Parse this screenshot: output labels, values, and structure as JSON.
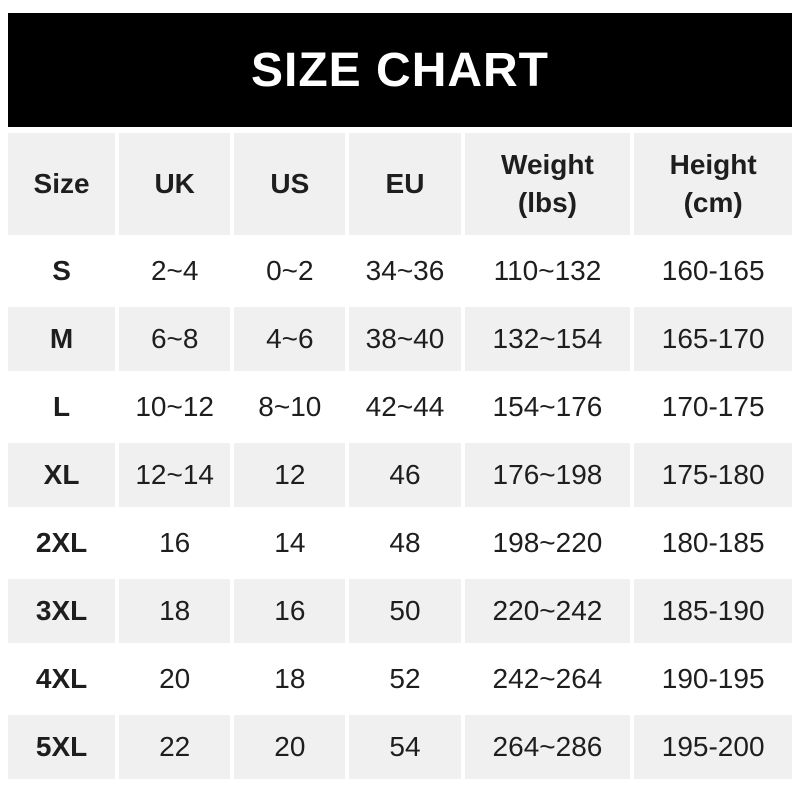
{
  "banner": {
    "title": "SIZE CHART"
  },
  "colors": {
    "banner_bg": "#000000",
    "banner_text": "#ffffff",
    "row_shade": "#f0f0f0",
    "row_plain": "#ffffff",
    "text": "#1e1e1e"
  },
  "table": {
    "headers": [
      {
        "label": "Size",
        "sub": ""
      },
      {
        "label": "UK",
        "sub": ""
      },
      {
        "label": "US",
        "sub": ""
      },
      {
        "label": "EU",
        "sub": ""
      },
      {
        "label": "Weight",
        "sub": "(lbs)"
      },
      {
        "label": "Height",
        "sub": "(cm)"
      }
    ]
  },
  "chart_data": {
    "type": "table",
    "title": "SIZE CHART",
    "columns": [
      "Size",
      "UK",
      "US",
      "EU",
      "Weight (lbs)",
      "Height (cm)"
    ],
    "rows": [
      [
        "S",
        "2~4",
        "0~2",
        "34~36",
        "110~132",
        "160-165"
      ],
      [
        "M",
        "6~8",
        "4~6",
        "38~40",
        "132~154",
        "165-170"
      ],
      [
        "L",
        "10~12",
        "8~10",
        "42~44",
        "154~176",
        "170-175"
      ],
      [
        "XL",
        "12~14",
        "12",
        "46",
        "176~198",
        "175-180"
      ],
      [
        "2XL",
        "16",
        "14",
        "48",
        "198~220",
        "180-185"
      ],
      [
        "3XL",
        "18",
        "16",
        "50",
        "220~242",
        "185-190"
      ],
      [
        "4XL",
        "20",
        "18",
        "52",
        "242~264",
        "190-195"
      ],
      [
        "5XL",
        "22",
        "20",
        "54",
        "264~286",
        "195-200"
      ]
    ]
  }
}
